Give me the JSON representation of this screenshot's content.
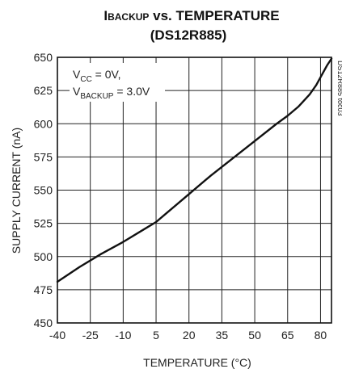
{
  "chart_data": {
    "type": "line",
    "title": {
      "prefix": "I",
      "subscript": "BACKUP",
      "rest": " vs. TEMPERATURE",
      "line2": "(DS12R885)"
    },
    "xlabel": "TEMPERATURE (°C)",
    "ylabel": "SUPPLY CURRENT (nA)",
    "xlim": [
      -40,
      85
    ],
    "ylim": [
      450,
      650
    ],
    "x_ticks": [
      -40,
      -25,
      -10,
      5,
      20,
      35,
      50,
      65,
      80
    ],
    "y_ticks": [
      450,
      475,
      500,
      525,
      550,
      575,
      600,
      625,
      650
    ],
    "grid": true,
    "annotation": {
      "line1": {
        "prefix": "V",
        "subscript": "CC",
        "rest": " = 0V,"
      },
      "line2": {
        "prefix": "V",
        "subscript": "BACKUP",
        "rest": " = 3.0V"
      }
    },
    "doc_id": "DS12R885 toc03",
    "series": [
      {
        "color": "#111111",
        "x": [
          -40,
          -30,
          -20,
          -10,
          0,
          5,
          10,
          20,
          30,
          40,
          50,
          60,
          65,
          70,
          75,
          78,
          80,
          83,
          85
        ],
        "y": [
          481,
          492,
          502,
          511,
          521,
          526,
          533,
          547,
          561,
          574,
          587,
          600,
          606,
          613,
          622,
          629,
          635,
          644,
          649
        ]
      }
    ]
  }
}
